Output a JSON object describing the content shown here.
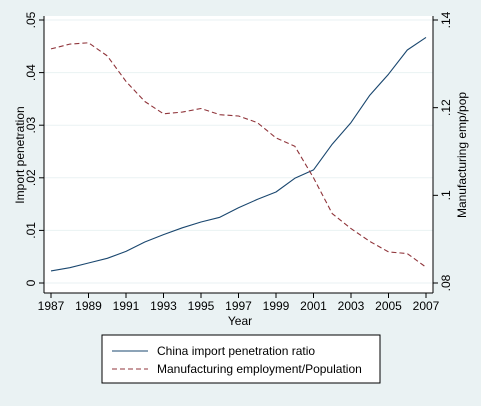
{
  "chart_data": {
    "type": "line",
    "xlabel": "Year",
    "ylabel_left": "Import penetration",
    "ylabel_right": "Manufacturing emp/pop",
    "x": [
      1987,
      1988,
      1989,
      1990,
      1991,
      1992,
      1993,
      1994,
      1995,
      1996,
      1997,
      1998,
      1999,
      2000,
      2001,
      2002,
      2003,
      2004,
      2005,
      2006,
      2007
    ],
    "x_ticks": [
      1987,
      1989,
      1991,
      1993,
      1995,
      1997,
      1999,
      2001,
      2003,
      2005,
      2007
    ],
    "y_left_ticks": [
      0,
      0.01,
      0.02,
      0.03,
      0.04,
      0.05
    ],
    "y_left_tick_labels": [
      "0",
      ".01",
      ".02",
      ".03",
      ".04",
      ".05"
    ],
    "y_right_ticks": [
      0.08,
      0.1,
      0.12,
      0.14
    ],
    "y_right_tick_labels": [
      ".08",
      ".1",
      ".12",
      ".14"
    ],
    "ylim_left": [
      0,
      0.05
    ],
    "ylim_right": [
      0.08,
      0.14
    ],
    "series": [
      {
        "name": "China import penetration ratio",
        "axis": "left",
        "color": "#1a476f",
        "dash": "solid",
        "values": [
          0.0023,
          0.0029,
          0.0038,
          0.0047,
          0.006,
          0.0078,
          0.0092,
          0.0105,
          0.0116,
          0.0125,
          0.0143,
          0.0159,
          0.0173,
          0.0199,
          0.0215,
          0.0264,
          0.0305,
          0.0357,
          0.0397,
          0.0443,
          0.0467
        ]
      },
      {
        "name": "Manufacturing employment/Population",
        "axis": "right",
        "color": "#90353b",
        "dash": "dashed",
        "values": [
          0.1334,
          0.1345,
          0.1348,
          0.1318,
          0.126,
          0.1214,
          0.1186,
          0.119,
          0.1198,
          0.1184,
          0.1181,
          0.1166,
          0.1131,
          0.1112,
          0.104,
          0.0958,
          0.0924,
          0.0895,
          0.0871,
          0.0867,
          0.0836
        ]
      }
    ],
    "legend_position": "bottom",
    "grid": "horizontal"
  }
}
